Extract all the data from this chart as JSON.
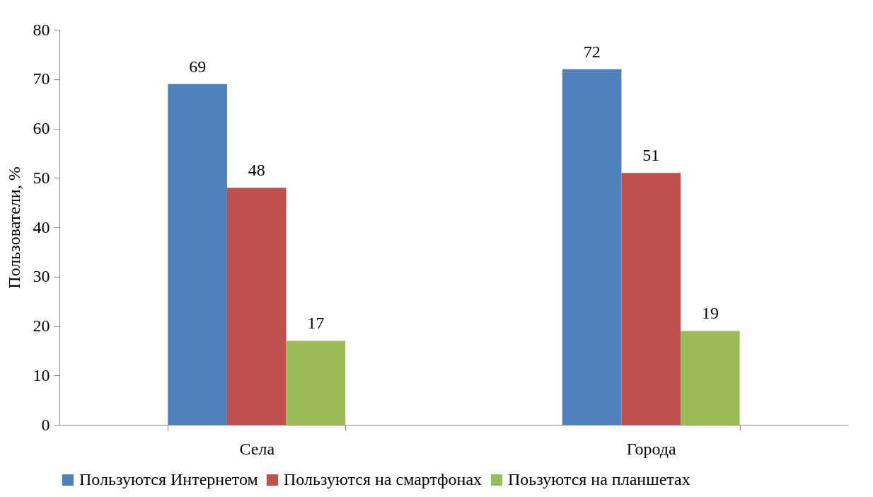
{
  "chart_data": {
    "type": "bar",
    "ylabel": "Пользователи, %",
    "categories": [
      "Села",
      "Города"
    ],
    "series": [
      {
        "name": "Пользуются Интернетом",
        "color": "#4f81bd",
        "values": [
          69,
          72
        ]
      },
      {
        "name": "Пользуются на смартфонах",
        "color": "#c0504d",
        "values": [
          48,
          51
        ]
      },
      {
        "name": "Поьзуются на планшетах",
        "color": "#9bbb59",
        "values": [
          17,
          19
        ]
      }
    ],
    "ylim": [
      0,
      80
    ],
    "yticks": [
      0,
      10,
      20,
      30,
      40,
      50,
      60,
      70,
      80
    ],
    "data_labels": true,
    "grid": false,
    "legend": "bottom"
  }
}
